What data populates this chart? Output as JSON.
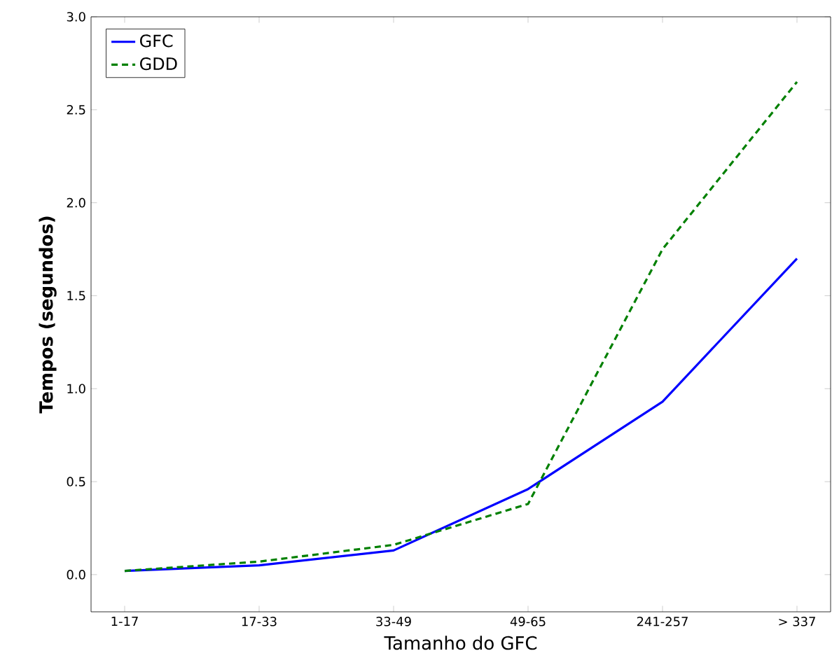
{
  "chart_data": {
    "type": "line",
    "xlabel": "Tamanho do GFC",
    "ylabel": "Tempos (segundos)",
    "categories": [
      "1-17",
      "17-33",
      "33-49",
      "49-65",
      "241-257",
      "> 337"
    ],
    "series": [
      {
        "name": "GFC",
        "color": "#0000ff",
        "line_style": "solid",
        "values": [
          0.02,
          0.05,
          0.13,
          0.46,
          0.93,
          1.7
        ]
      },
      {
        "name": "GDD",
        "color": "#008000",
        "line_style": "dashed",
        "values": [
          0.02,
          0.07,
          0.16,
          0.38,
          1.75,
          2.65
        ]
      }
    ],
    "ylim": [
      -0.2,
      3.0
    ],
    "yticks": [
      {
        "value": 0,
        "label": "0.0"
      },
      {
        "value": 0.5,
        "label": "0.5"
      },
      {
        "value": 1,
        "label": "1.0"
      },
      {
        "value": 1.5,
        "label": "1.5"
      },
      {
        "value": 2,
        "label": "2.0"
      },
      {
        "value": 2.5,
        "label": "2.5"
      },
      {
        "value": 3,
        "label": "3.0"
      }
    ],
    "grid": false,
    "legend": "top left",
    "marker": "none"
  }
}
